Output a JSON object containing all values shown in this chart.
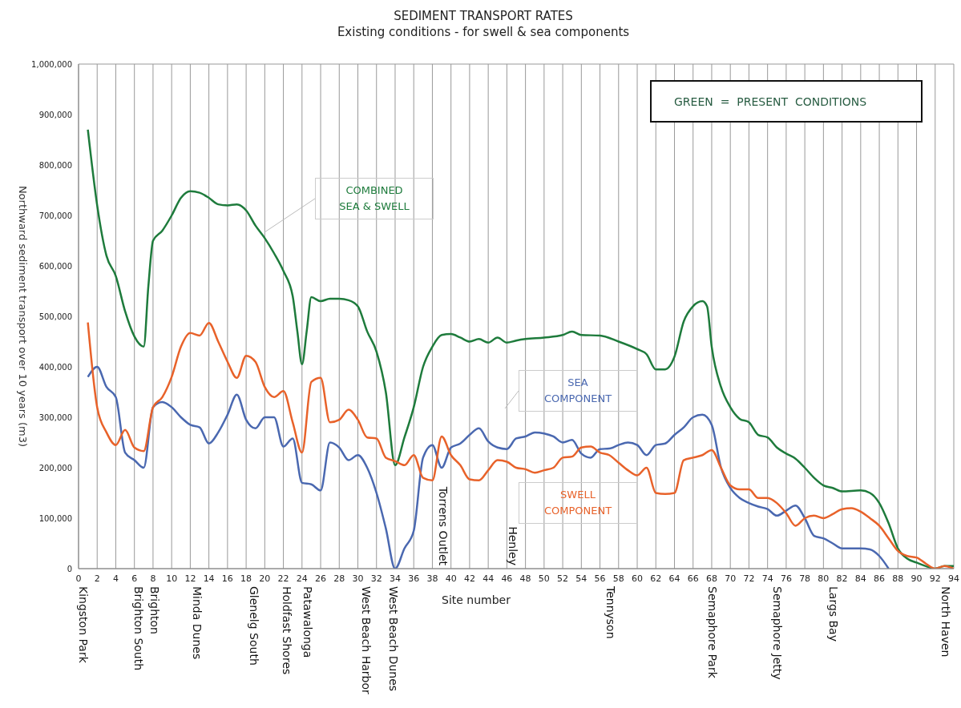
{
  "chart_data": {
    "type": "line",
    "title": "SEDIMENT TRANSPORT RATES",
    "subtitle": "Existing conditions  -  for swell & sea components",
    "xlabel": "Site number",
    "ylabel": "Northward sediment transport over 10 years (m3)",
    "xlim": [
      0,
      94
    ],
    "xticks": [
      0,
      2,
      4,
      6,
      8,
      10,
      12,
      14,
      16,
      18,
      20,
      22,
      24,
      26,
      28,
      30,
      32,
      34,
      36,
      38,
      40,
      42,
      44,
      46,
      48,
      50,
      52,
      54,
      56,
      58,
      60,
      62,
      64,
      66,
      68,
      70,
      72,
      74,
      76,
      78,
      80,
      82,
      84,
      86,
      88,
      90,
      92,
      94
    ],
    "ylim": [
      0,
      1000000
    ],
    "yticks": [
      {
        "value": 0,
        "label": "0"
      },
      {
        "value": 100000,
        "label": "100,000"
      },
      {
        "value": 200000,
        "label": "200,000"
      },
      {
        "value": 300000,
        "label": "300,000"
      },
      {
        "value": 400000,
        "label": "400,000"
      },
      {
        "value": 500000,
        "label": "500,000"
      },
      {
        "value": 600000,
        "label": "600,000"
      },
      {
        "value": 700000,
        "label": "700,000"
      },
      {
        "value": 800000,
        "label": "800,000"
      },
      {
        "value": 900000,
        "label": "900,000"
      },
      {
        "value": 1000000,
        "label": "1,000,000"
      }
    ],
    "grid": true,
    "legend": false,
    "marker": "none",
    "line_style": "solid",
    "series": [
      {
        "name": "COMBINED\nSEA  &  SWELL",
        "color": "#1e7b3c",
        "x": [
          1,
          2,
          3,
          4,
          5,
          6,
          7,
          7.5,
          8,
          9,
          10,
          11,
          12,
          13,
          14,
          15,
          16,
          17,
          18,
          19,
          20,
          21,
          22,
          23,
          23.5,
          24,
          24.5,
          25,
          26,
          27,
          28,
          29,
          30,
          31,
          32,
          33,
          34,
          35,
          36,
          37,
          38,
          39,
          40,
          41,
          42,
          43,
          44,
          45,
          46,
          47,
          48,
          50,
          52,
          53,
          54,
          56,
          58,
          60,
          61,
          62,
          63,
          64,
          65,
          66,
          67,
          67.5,
          68,
          69,
          70,
          71,
          72,
          73,
          74,
          75,
          76,
          77,
          78,
          79,
          80,
          81,
          82,
          84,
          85,
          86,
          87,
          88,
          89,
          90,
          91,
          92,
          93,
          94
        ],
        "values": [
          870000,
          720000,
          620000,
          580000,
          510000,
          460000,
          440000,
          560000,
          650000,
          670000,
          700000,
          735000,
          748000,
          745000,
          735000,
          722000,
          720000,
          722000,
          710000,
          680000,
          655000,
          625000,
          590000,
          540000,
          470000,
          405000,
          470000,
          538000,
          530000,
          535000,
          535000,
          532000,
          520000,
          470000,
          430000,
          350000,
          205000,
          260000,
          320000,
          400000,
          440000,
          463000,
          465000,
          458000,
          450000,
          455000,
          448000,
          458000,
          448000,
          452000,
          455000,
          458000,
          463000,
          470000,
          463000,
          462000,
          450000,
          435000,
          425000,
          395000,
          395000,
          420000,
          490000,
          520000,
          530000,
          520000,
          440000,
          360000,
          320000,
          297000,
          290000,
          265000,
          260000,
          240000,
          228000,
          218000,
          200000,
          180000,
          165000,
          160000,
          153000,
          155000,
          150000,
          130000,
          90000,
          40000,
          20000,
          12000,
          5000,
          0,
          5000,
          5000
        ]
      },
      {
        "name": "SEA\nCOMPONENT",
        "color": "#4a68b0",
        "x": [
          1,
          2,
          3,
          4,
          5,
          6,
          7,
          8,
          9,
          10,
          11,
          12,
          13,
          14,
          15,
          16,
          17,
          18,
          19,
          20,
          21,
          22,
          23,
          24,
          25,
          26,
          27,
          28,
          29,
          30,
          31,
          32,
          33,
          34,
          35,
          36,
          37,
          38,
          39,
          40,
          41,
          42,
          43,
          44,
          45,
          46,
          47,
          48,
          49,
          50,
          51,
          52,
          53,
          54,
          55,
          56,
          57,
          58,
          59,
          60,
          61,
          62,
          63,
          64,
          65,
          66,
          67,
          68,
          69,
          70,
          71,
          72,
          73,
          74,
          75,
          76,
          77,
          78,
          79,
          80,
          81,
          82,
          84,
          85,
          86,
          87
        ],
        "values": [
          380000,
          400000,
          360000,
          340000,
          230000,
          215000,
          200000,
          320000,
          330000,
          320000,
          300000,
          285000,
          280000,
          248000,
          270000,
          305000,
          345000,
          295000,
          278000,
          300000,
          300000,
          242000,
          258000,
          170000,
          167000,
          155000,
          250000,
          240000,
          215000,
          225000,
          200000,
          150000,
          80000,
          0,
          40000,
          75000,
          220000,
          245000,
          200000,
          240000,
          248000,
          265000,
          278000,
          252000,
          240000,
          237000,
          258000,
          262000,
          270000,
          268000,
          262000,
          250000,
          255000,
          228000,
          220000,
          237000,
          238000,
          245000,
          250000,
          245000,
          225000,
          245000,
          248000,
          265000,
          280000,
          300000,
          305000,
          285000,
          200000,
          160000,
          140000,
          130000,
          123000,
          118000,
          105000,
          115000,
          125000,
          100000,
          65000,
          60000,
          50000,
          40000,
          40000,
          38000,
          25000,
          0
        ]
      },
      {
        "name": "SWELL\nCOMPONENT",
        "color": "#e8622a",
        "x": [
          1,
          2,
          3,
          4,
          5,
          6,
          7,
          8,
          9,
          10,
          11,
          12,
          13,
          14,
          15,
          16,
          17,
          18,
          19,
          20,
          21,
          22,
          23,
          24,
          25,
          26,
          27,
          28,
          29,
          30,
          31,
          32,
          33,
          34,
          35,
          36,
          37,
          38,
          39,
          40,
          41,
          42,
          43,
          44,
          45,
          46,
          47,
          48,
          49,
          50,
          51,
          52,
          53,
          54,
          55,
          56,
          57,
          58,
          59,
          60,
          61,
          62,
          63,
          64,
          65,
          66,
          67,
          68,
          69,
          70,
          71,
          72,
          73,
          74,
          75,
          76,
          77,
          78,
          79,
          80,
          81,
          82,
          83,
          84,
          85,
          86,
          87,
          88,
          89,
          90,
          91,
          92,
          93,
          94
        ],
        "values": [
          488000,
          320000,
          270000,
          245000,
          275000,
          240000,
          233000,
          320000,
          340000,
          380000,
          440000,
          467000,
          462000,
          487000,
          450000,
          410000,
          378000,
          422000,
          410000,
          360000,
          340000,
          352000,
          290000,
          230000,
          370000,
          378000,
          290000,
          295000,
          315000,
          295000,
          260000,
          258000,
          220000,
          213000,
          205000,
          225000,
          180000,
          175000,
          262000,
          225000,
          205000,
          177000,
          175000,
          195000,
          215000,
          212000,
          200000,
          197000,
          190000,
          195000,
          200000,
          220000,
          222000,
          240000,
          242000,
          230000,
          225000,
          210000,
          195000,
          185000,
          200000,
          150000,
          148000,
          150000,
          215000,
          220000,
          225000,
          235000,
          200000,
          165000,
          157000,
          157000,
          140000,
          140000,
          130000,
          110000,
          85000,
          100000,
          105000,
          100000,
          108000,
          118000,
          120000,
          113000,
          100000,
          85000,
          60000,
          35000,
          25000,
          22000,
          10000,
          0,
          5000,
          0
        ]
      }
    ],
    "annotations": [
      "GREEN  =  PRESENT  CONDITIONS",
      "Torrens Outlet",
      "Henley",
      "Kingston Park",
      "Brighton South",
      "Brighton",
      "Minda Dunes",
      "Glenelg South",
      "Holdfast Shores",
      "Patawalonga",
      "West Beach Harbor",
      "West Beach Dunes",
      "Tennyson",
      "Semaphore Park",
      "Semaphore Jetty",
      "Largs Bay",
      "North Haven"
    ]
  }
}
